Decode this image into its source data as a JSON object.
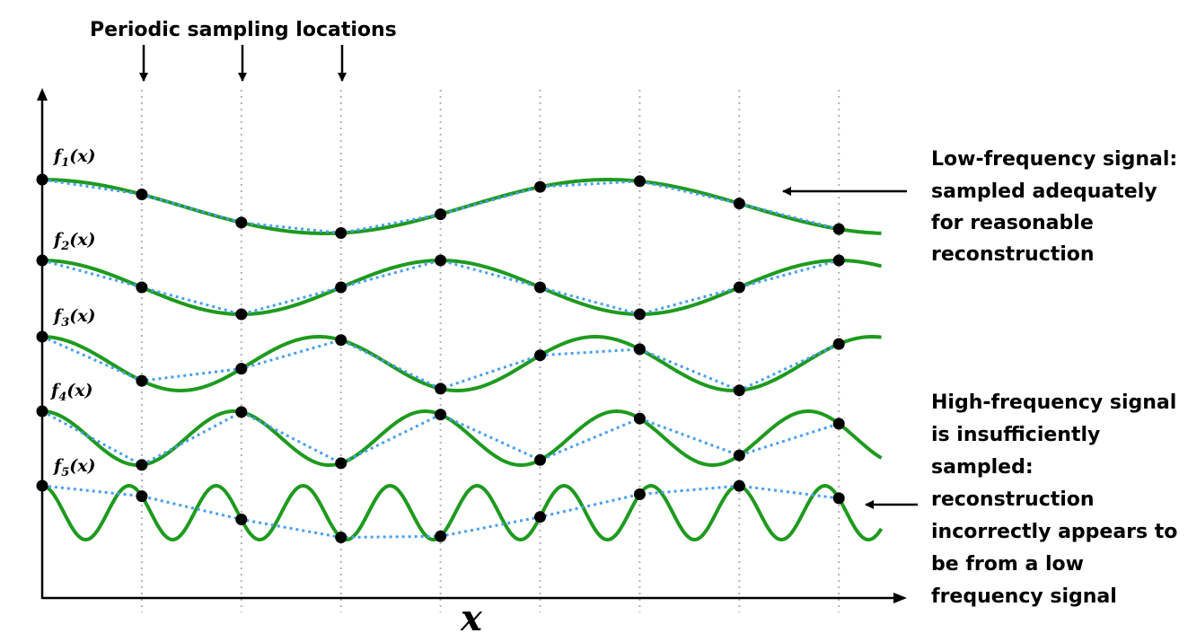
{
  "sampling_label": "Periodic sampling locations",
  "x_axis_label": "x",
  "function_labels": [
    {
      "name": "f",
      "sub": "1",
      "arg": "(x)"
    },
    {
      "name": "f",
      "sub": "2",
      "arg": "(x)"
    },
    {
      "name": "f",
      "sub": "3",
      "arg": "(x)"
    },
    {
      "name": "f",
      "sub": "4",
      "arg": "(x)"
    },
    {
      "name": "f",
      "sub": "5",
      "arg": "(x)"
    }
  ],
  "low_freq_annotation": [
    "Low-frequency signal:",
    "sampled adequately",
    "for reasonable",
    "reconstruction"
  ],
  "high_freq_annotation": [
    "High-frequency signal",
    "is insufficiently",
    "sampled:",
    "reconstruction",
    "incorrectly appears to",
    "be from a low",
    "frequency signal"
  ],
  "colors": {
    "signal": "#1e9a1e",
    "reconstruction": "#4a9ef0",
    "sample_dot": "#000000",
    "grid": "#b4b4b4",
    "axis": "#000000"
  },
  "signals": [
    {
      "id": "f1",
      "cycles_per_sample": 0.176,
      "phase": 0.0
    },
    {
      "id": "f2",
      "cycles_per_sample": 0.25,
      "phase": 0.0
    },
    {
      "id": "f3",
      "cycles_per_sample": 0.36,
      "phase": 0.0
    },
    {
      "id": "f4",
      "cycles_per_sample": 0.52,
      "phase": 0.0
    },
    {
      "id": "f5",
      "cycles_per_sample": 1.145,
      "phase": 0.0
    }
  ],
  "sample_count": 9
}
